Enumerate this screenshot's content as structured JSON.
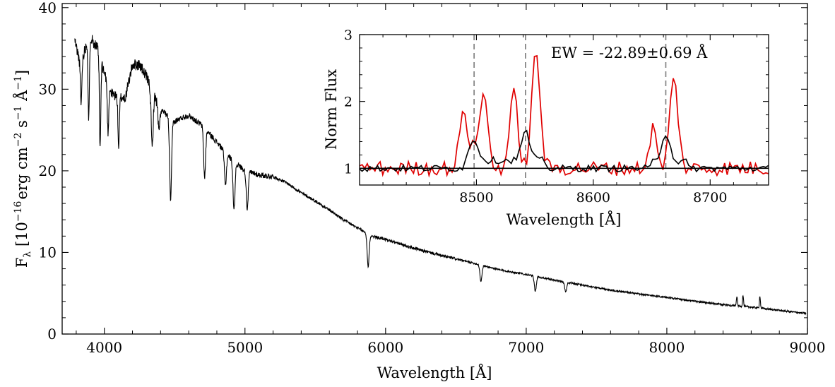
{
  "chart_data": [
    {
      "type": "line",
      "panel": "main",
      "xlabel": "Wavelength [Å]",
      "ylabel": {
        "prefix": "F",
        "sub": "λ",
        "open": " [10",
        "exp1": "−16",
        "mid": "erg cm",
        "exp2": "−2",
        "mid2": " s",
        "exp3": "−1",
        "mid3": " Å",
        "exp4": "−1",
        "close": "]"
      },
      "xlim": [
        3700,
        9000
      ],
      "ylim": [
        0,
        40.5
      ],
      "xticks": [
        4000,
        5000,
        6000,
        7000,
        8000,
        9000
      ],
      "yticks": [
        0,
        10,
        20,
        30,
        40
      ],
      "xtick_labels": [
        "4000",
        "5000",
        "6000",
        "7000",
        "8000",
        "9000"
      ],
      "ytick_labels": [
        "0",
        "10",
        "20",
        "30",
        "40"
      ],
      "grid": false,
      "series": [
        {
          "color": "#000000",
          "continuum": [
            [
              3790,
              36
            ],
            [
              3830,
              33
            ],
            [
              3880,
              36
            ],
            [
              3900,
              36.5
            ],
            [
              3950,
              35
            ],
            [
              4000,
              32
            ],
            [
              4050,
              29.5
            ],
            [
              4100,
              29
            ],
            [
              4150,
              29
            ],
            [
              4200,
              33
            ],
            [
              4250,
              33
            ],
            [
              4300,
              31.5
            ],
            [
              4400,
              27.5
            ],
            [
              4500,
              26
            ],
            [
              4550,
              26.5
            ],
            [
              4600,
              26.8
            ],
            [
              4700,
              25.5
            ],
            [
              4800,
              23.5
            ],
            [
              4900,
              21.5
            ],
            [
              5000,
              20
            ],
            [
              5100,
              19.5
            ],
            [
              5200,
              19.3
            ],
            [
              5300,
              18.5
            ],
            [
              5400,
              17.3
            ],
            [
              5500,
              16.3
            ],
            [
              5600,
              15.2
            ],
            [
              5700,
              14
            ],
            [
              5800,
              13
            ],
            [
              5900,
              12
            ],
            [
              6000,
              11.6
            ],
            [
              6200,
              10.5
            ],
            [
              6400,
              9.6
            ],
            [
              6600,
              8.8
            ],
            [
              6800,
              7.9
            ],
            [
              7000,
              7.3
            ],
            [
              7200,
              6.6
            ],
            [
              7400,
              6
            ],
            [
              7600,
              5.4
            ],
            [
              7800,
              4.9
            ],
            [
              8000,
              4.5
            ],
            [
              8200,
              4
            ],
            [
              8400,
              3.6
            ],
            [
              8600,
              3.3
            ],
            [
              8800,
              2.9
            ],
            [
              9000,
              2.5
            ]
          ],
          "absorption_lines": [
            [
              3835,
              5
            ],
            [
              3889,
              10
            ],
            [
              3970,
              11
            ],
            [
              4026,
              6
            ],
            [
              4102,
              6
            ],
            [
              4340,
              7
            ],
            [
              4388,
              3
            ],
            [
              4471,
              10
            ],
            [
              4713,
              6
            ],
            [
              4861,
              4
            ],
            [
              4922,
              6
            ],
            [
              5016,
              4.5
            ],
            [
              5876,
              4
            ],
            [
              6678,
              2
            ],
            [
              7065,
              1.8
            ],
            [
              7281,
              1.2
            ]
          ],
          "emission_lines": [
            [
              8498,
              1.2
            ],
            [
              8542,
              1.4
            ],
            [
              8662,
              1.5
            ]
          ]
        }
      ]
    },
    {
      "type": "line",
      "panel": "inset",
      "xlabel": "Wavelength [Å]",
      "ylabel": "Norm Flux",
      "xlim": [
        8400,
        8750
      ],
      "ylim": [
        0.75,
        3.0
      ],
      "xticks": [
        8500,
        8600,
        8700
      ],
      "yticks": [
        1,
        2,
        3
      ],
      "xtick_labels": [
        "8500",
        "8600",
        "8700"
      ],
      "ytick_labels": [
        "1",
        "2",
        "3"
      ],
      "reference_line_y": 1,
      "vertical_lines_x": [
        8498,
        8542,
        8662
      ],
      "annotation": "EW = -22.89±0.69 Å",
      "series": [
        {
          "color": "#000000",
          "lines": [
            [
              8498,
              0.32,
              3.5
            ],
            [
              8542,
              0.42,
              3.5
            ],
            [
              8662,
              0.43,
              3.5
            ]
          ]
        },
        {
          "color": "#e00000",
          "lines": [
            [
              8488,
              0.75,
              3
            ],
            [
              8506,
              1.15,
              3.5
            ],
            [
              8532,
              1.1,
              3.5
            ],
            [
              8551,
              1.75,
              3.5
            ],
            [
              8651,
              0.6,
              3
            ],
            [
              8669,
              1.35,
              3.5
            ]
          ]
        }
      ]
    }
  ]
}
